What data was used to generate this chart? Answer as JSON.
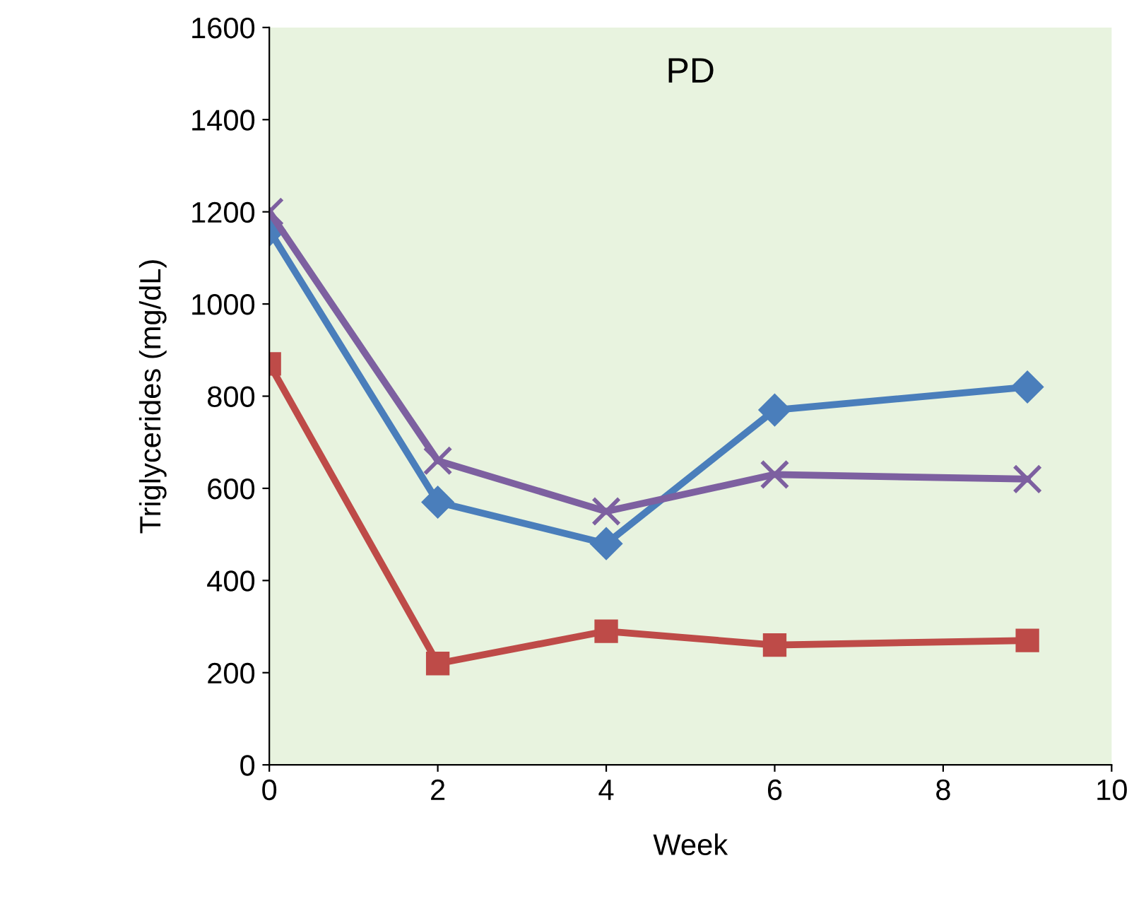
{
  "chart_data": {
    "type": "line",
    "title": "PD",
    "xlabel": "Week",
    "ylabel": "Triglycerides (mg/dL)",
    "x": [
      0,
      2,
      4,
      6,
      9
    ],
    "series": [
      {
        "color": "#4a7ebb",
        "marker": "diamond",
        "values": [
          1160,
          570,
          480,
          770,
          820
        ]
      },
      {
        "color": "#7d60a0",
        "marker": "cross",
        "values": [
          1200,
          660,
          550,
          630,
          620
        ]
      },
      {
        "color": "#be4b48",
        "marker": "square",
        "values": [
          870,
          220,
          290,
          260,
          270
        ]
      }
    ],
    "xlim": [
      0,
      10
    ],
    "xticks": [
      0,
      2,
      4,
      6,
      8,
      10
    ],
    "ylim": [
      0,
      1600
    ],
    "yticks": [
      0,
      200,
      400,
      600,
      800,
      1000,
      1200,
      1400,
      1600
    ],
    "grid": false,
    "legend": false,
    "line_style": "solid"
  }
}
